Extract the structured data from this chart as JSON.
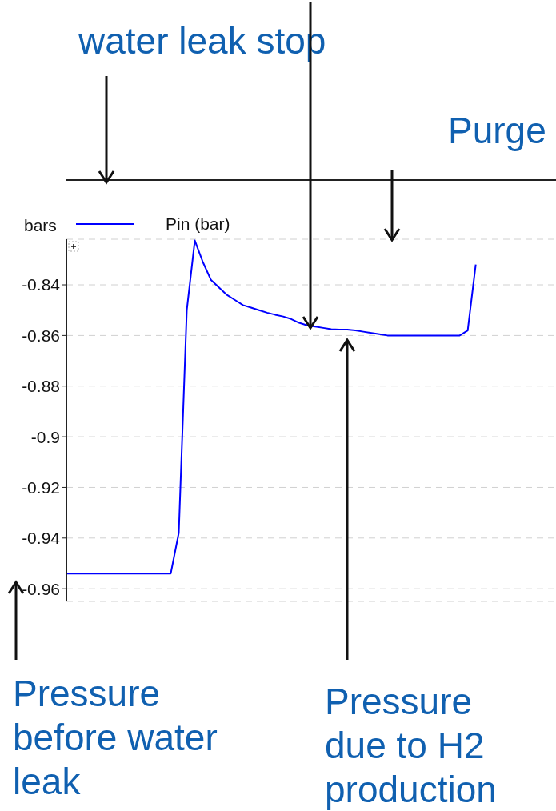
{
  "chart_data": {
    "type": "line",
    "ylabel": "bars",
    "legend": "top left",
    "grid": "y",
    "ylim": [
      -0.965,
      -0.822
    ],
    "yticks": [
      -0.84,
      -0.86,
      -0.88,
      -0.9,
      -0.92,
      -0.94,
      -0.96
    ],
    "categories": [
      null,
      null,
      null,
      null,
      null,
      null,
      null,
      null,
      null,
      null,
      null,
      null,
      null,
      null,
      null,
      null,
      null,
      null,
      null,
      null,
      null,
      null,
      null,
      null,
      null,
      null,
      null,
      null,
      null,
      null,
      null,
      null,
      null,
      null,
      null,
      null,
      null,
      null,
      null,
      null,
      null,
      null,
      null,
      null,
      null,
      null,
      null,
      null,
      null,
      null,
      null,
      null,
      null,
      null,
      null,
      null,
      null,
      null,
      null,
      null,
      null,
      null
    ],
    "series": [
      {
        "name": "Pin (bar)",
        "color": "#0000ff",
        "values": [
          -0.954,
          -0.954,
          -0.954,
          -0.954,
          -0.954,
          -0.954,
          -0.954,
          -0.954,
          -0.954,
          -0.954,
          -0.954,
          -0.954,
          -0.954,
          -0.954,
          -0.938,
          -0.85,
          -0.8225,
          -0.831,
          -0.838,
          -0.841,
          -0.844,
          -0.846,
          -0.848,
          -0.849,
          -0.85,
          -0.851,
          -0.8518,
          -0.8525,
          -0.8535,
          -0.855,
          -0.856,
          -0.8565,
          -0.857,
          -0.8575,
          -0.8577,
          -0.8577,
          -0.858,
          -0.8585,
          -0.859,
          -0.8595,
          -0.86,
          -0.86,
          -0.86,
          -0.86,
          -0.86,
          -0.86,
          -0.86,
          -0.86,
          -0.86,
          -0.86,
          -0.858,
          -0.832,
          null,
          null,
          null,
          null,
          null,
          null,
          null,
          null,
          null,
          null
        ]
      }
    ],
    "annotations": [
      "water leak stop",
      "Purge",
      "Pressure before water leak",
      "Pressure due to H2 production"
    ]
  }
}
